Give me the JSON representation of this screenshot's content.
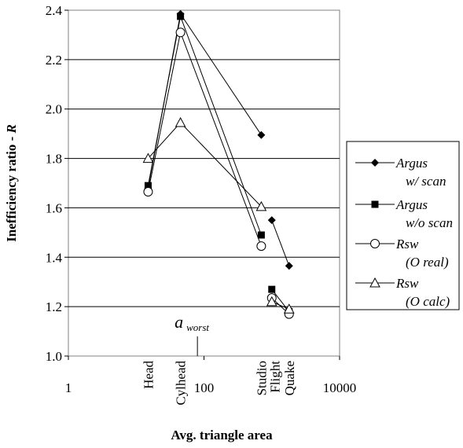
{
  "chart_data": {
    "type": "line",
    "title": "",
    "xlabel": "Avg. triangle area",
    "ylabel_main": "Inefficiency ratio - ",
    "ylabel_var": "R",
    "x_scale": "log",
    "xlim": [
      1,
      10000
    ],
    "ylim": [
      1.0,
      2.4
    ],
    "y_ticks": [
      "1.0",
      "1.2",
      "1.4",
      "1.6",
      "1.8",
      "2.0",
      "2.2",
      "2.4"
    ],
    "x_ticks": [
      "1",
      "100",
      "10000"
    ],
    "grid": "horizontal",
    "legend_position": "right",
    "model_labels": [
      {
        "label": "Head",
        "x": 15
      },
      {
        "label": "Cylhead",
        "x": 45
      },
      {
        "label": "Studio",
        "x": 700
      },
      {
        "label": "Flight",
        "x": 1100
      },
      {
        "label": "Quake",
        "x": 1800
      }
    ],
    "annotation": {
      "main": "a",
      "sub": "worst",
      "x": 80
    },
    "series": [
      {
        "name": "Argus w/ scan",
        "legend_line1": "Argus",
        "legend_line2": "w/ scan",
        "marker": "diamond",
        "segments": [
          [
            [
              15,
              1.68
            ],
            [
              45,
              2.385
            ],
            [
              700,
              1.895
            ]
          ],
          [
            [
              1000,
              1.55
            ],
            [
              1800,
              1.365
            ]
          ]
        ]
      },
      {
        "name": "Argus w/o scan",
        "legend_line1": "Argus",
        "legend_line2": "w/o scan",
        "marker": "square",
        "segments": [
          [
            [
              15,
              1.69
            ],
            [
              45,
              2.375
            ],
            [
              700,
              1.49
            ]
          ],
          [
            [
              1000,
              1.27
            ],
            [
              1800,
              1.18
            ]
          ]
        ]
      },
      {
        "name": "Rsw (O real)",
        "legend_line1": "Rsw",
        "legend_line2": "(O real)",
        "marker": "circle",
        "segments": [
          [
            [
              15,
              1.665
            ],
            [
              45,
              2.31
            ],
            [
              700,
              1.445
            ]
          ],
          [
            [
              1000,
              1.235
            ],
            [
              1800,
              1.17
            ]
          ]
        ]
      },
      {
        "name": "Rsw (O calc)",
        "legend_line1": "Rsw",
        "legend_line2": "(O calc)",
        "marker": "triangle",
        "segments": [
          [
            [
              15,
              1.8
            ],
            [
              45,
              1.945
            ],
            [
              700,
              1.605
            ]
          ],
          [
            [
              1000,
              1.22
            ],
            [
              1800,
              1.19
            ]
          ]
        ]
      }
    ]
  }
}
